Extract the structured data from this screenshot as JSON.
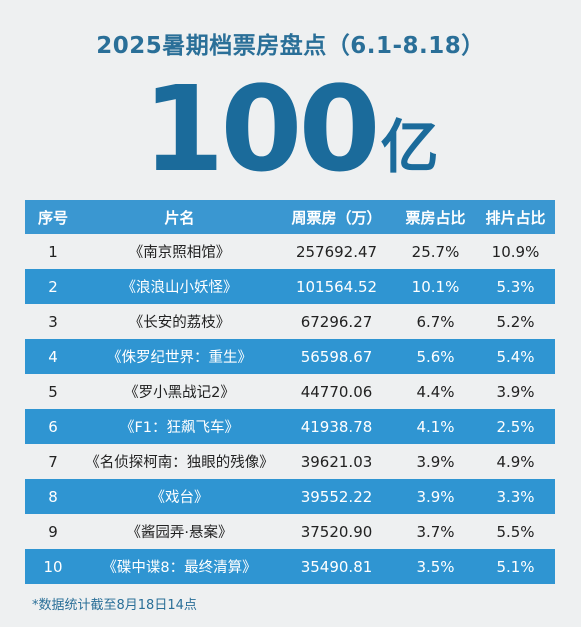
{
  "title": "2025暑期档票房盘点（6.1-8.18）",
  "total": {
    "number": "100",
    "unit": "亿"
  },
  "table": {
    "headers": [
      "序号",
      "片名",
      "周票房（万）",
      "票房占比",
      "排片占比"
    ],
    "rows": [
      [
        "1",
        "《南京照相馆》",
        "257692.47",
        "25.7%",
        "10.9%"
      ],
      [
        "2",
        "《浪浪山小妖怪》",
        "101564.52",
        "10.1%",
        "5.3%"
      ],
      [
        "3",
        "《长安的荔枝》",
        "67296.27",
        "6.7%",
        "5.2%"
      ],
      [
        "4",
        "《侏罗纪世界：重生》",
        "56598.67",
        "5.6%",
        "5.4%"
      ],
      [
        "5",
        "《罗小黑战记2》",
        "44770.06",
        "4.4%",
        "3.9%"
      ],
      [
        "6",
        "《F1：狂飙飞车》",
        "41938.78",
        "4.1%",
        "2.5%"
      ],
      [
        "7",
        "《名侦探柯南：独眼的残像》",
        "39621.03",
        "3.9%",
        "4.9%"
      ],
      [
        "8",
        "《戏台》",
        "39552.22",
        "3.9%",
        "3.3%"
      ],
      [
        "9",
        "《酱园弄·悬案》",
        "37520.90",
        "3.7%",
        "5.5%"
      ],
      [
        "10",
        "《碟中谍8：最终清算》",
        "35490.81",
        "3.5%",
        "5.1%"
      ]
    ]
  },
  "footnote": "*数据统计截至8月18日14点",
  "colors": {
    "accent": "#2f95d2",
    "title": "#2a6f98",
    "background": "#eef0f1"
  }
}
